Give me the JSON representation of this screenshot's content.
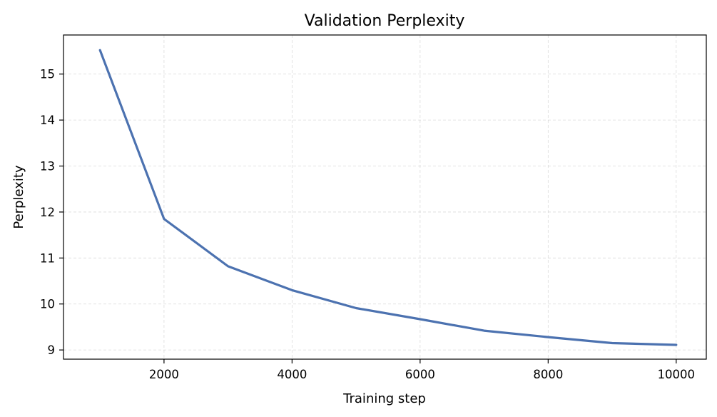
{
  "chart_data": {
    "type": "line",
    "title": "Validation Perplexity",
    "xlabel": "Training step",
    "ylabel": "Perplexity",
    "xlim": [
      430,
      10470
    ],
    "ylim": [
      8.8,
      15.85
    ],
    "xticks": [
      2000,
      4000,
      6000,
      8000,
      10000
    ],
    "yticks": [
      9,
      10,
      11,
      12,
      13,
      14,
      15
    ],
    "grid": true,
    "series": [
      {
        "color": "#4c72b0",
        "x": [
          1000,
          2000,
          3000,
          4000,
          5000,
          6000,
          7000,
          8000,
          9000,
          10000
        ],
        "y": [
          15.52,
          11.85,
          10.82,
          10.3,
          9.91,
          9.67,
          9.42,
          9.28,
          9.15,
          9.11
        ]
      }
    ]
  }
}
